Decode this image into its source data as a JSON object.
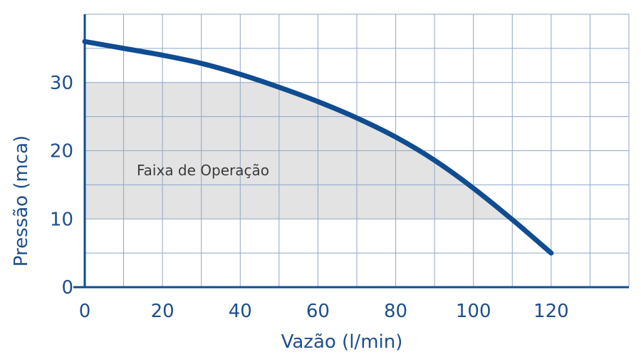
{
  "chart_data": {
    "type": "line",
    "xlabel": "Vazão (l/min)",
    "ylabel": "Pressão (mca)",
    "xlim": [
      0,
      140
    ],
    "ylim": [
      0,
      40
    ],
    "x_ticks": [
      0,
      20,
      40,
      60,
      80,
      100,
      120
    ],
    "y_ticks": [
      0,
      10,
      20,
      30
    ],
    "grid": true,
    "series": [
      {
        "x": [
          0,
          10,
          20,
          30,
          40,
          50,
          60,
          70,
          80,
          90,
          100,
          110,
          120
        ],
        "y": [
          36,
          35,
          34,
          32.8,
          31.2,
          29.3,
          27.2,
          24.8,
          22,
          18.6,
          14.5,
          9.9,
          5
        ]
      }
    ],
    "region": {
      "label": "Faixa de Operação",
      "y_range": [
        10,
        30
      ]
    },
    "colors": {
      "curve": "#0f4c92",
      "axis_text": "#1d4f8c",
      "grid": "#8ea6c9",
      "region_fill": "#e3e3e3"
    }
  }
}
